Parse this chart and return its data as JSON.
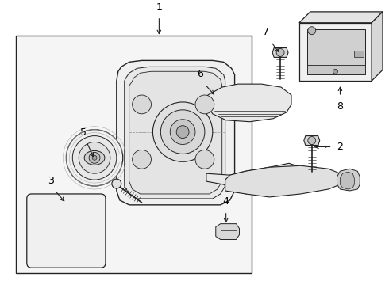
{
  "bg_color": "#ffffff",
  "fill_color": "#f0f0f0",
  "line_color": "#222222",
  "label_color": "#000000",
  "lw_main": 0.8,
  "lw_thin": 0.5,
  "lw_thick": 1.0
}
